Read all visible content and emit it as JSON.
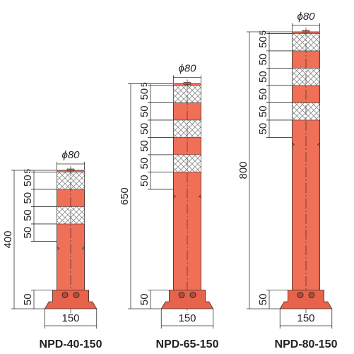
{
  "posts": [
    {
      "name": "NPD-40-150",
      "diameter": "ϕ80",
      "height": "400",
      "base_width": "150",
      "base_height": "50",
      "segments": [
        "5",
        "50",
        "50",
        "50",
        "50"
      ]
    },
    {
      "name": "NPD-65-150",
      "diameter": "ϕ80",
      "height": "650",
      "base_width": "150",
      "base_height": "50",
      "segments": [
        "5",
        "50",
        "50",
        "50",
        "50",
        "50",
        "50"
      ]
    },
    {
      "name": "NPD-80-150",
      "diameter": "ϕ80",
      "height": "800",
      "base_width": "150",
      "base_height": "50",
      "segments": [
        "5",
        "50",
        "50",
        "50",
        "50",
        "50",
        "50"
      ]
    }
  ]
}
